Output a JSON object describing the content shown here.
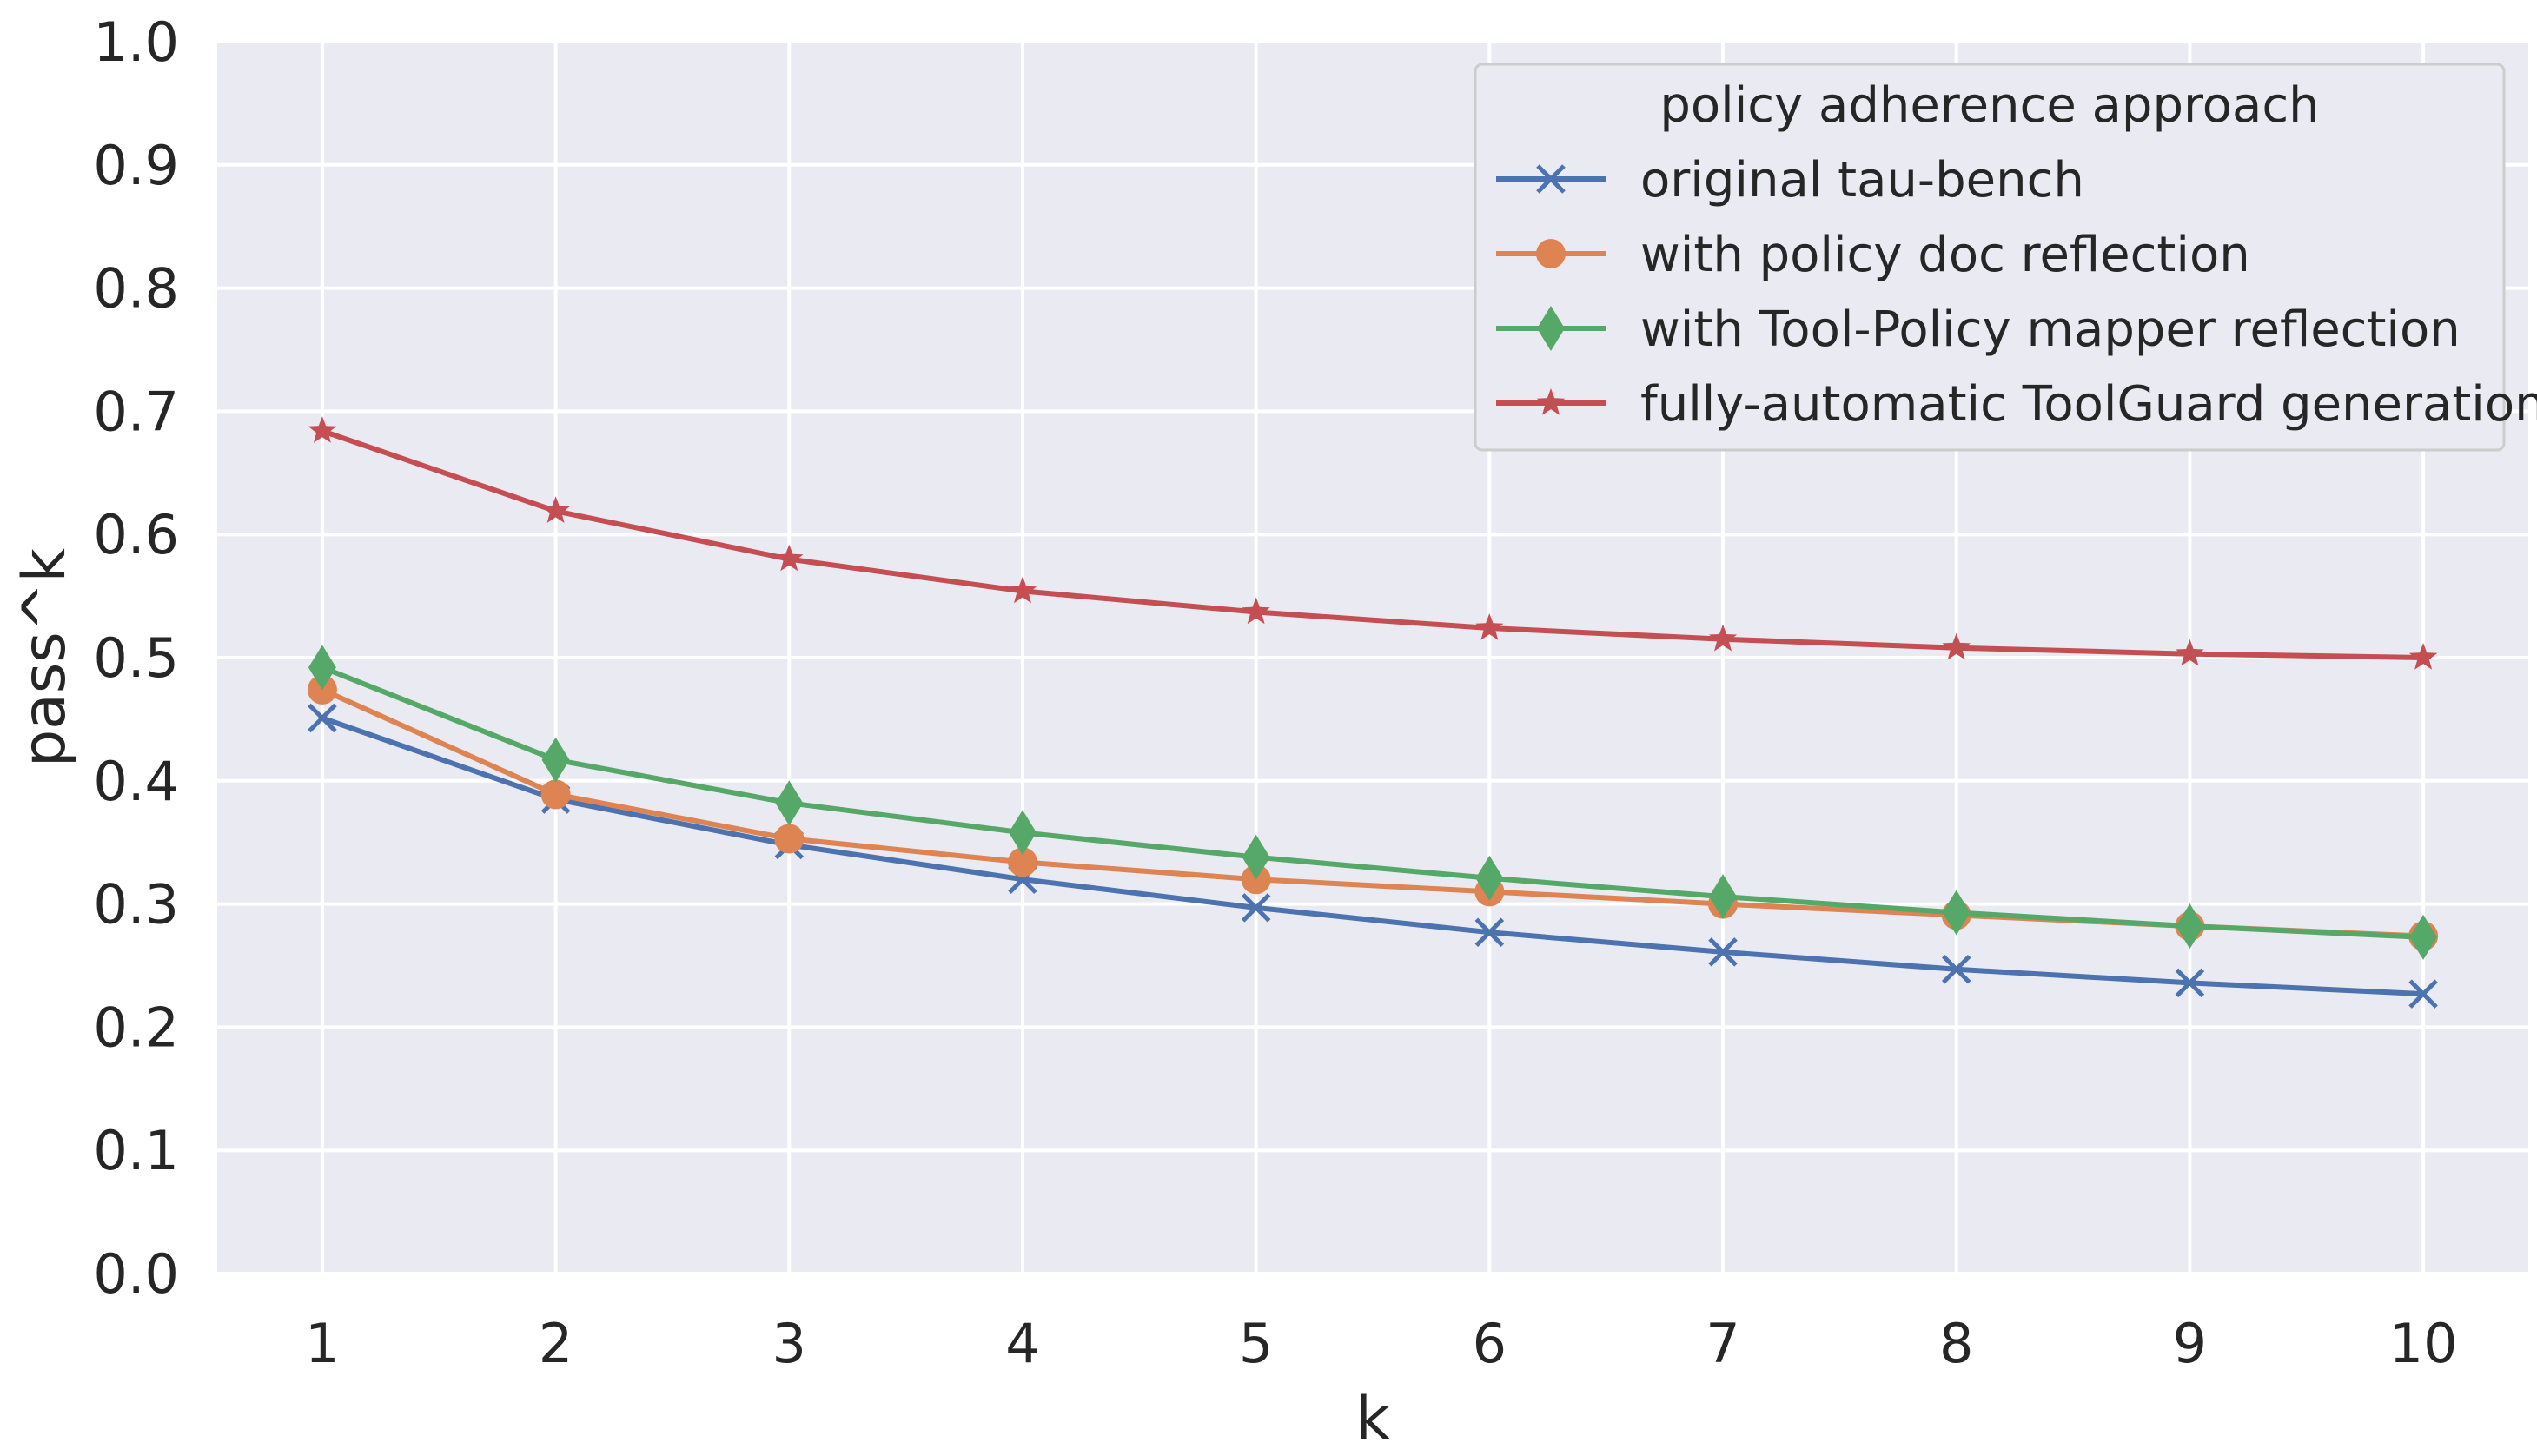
{
  "chart_data": {
    "type": "line",
    "title": "",
    "xlabel": "k",
    "ylabel": "pass^k",
    "x": [
      1,
      2,
      3,
      4,
      5,
      6,
      7,
      8,
      9,
      10
    ],
    "xlim": [
      0.55,
      10.45
    ],
    "ylim": [
      0.0,
      1.0
    ],
    "xticks": [
      "1",
      "2",
      "3",
      "4",
      "5",
      "6",
      "7",
      "8",
      "9",
      "10"
    ],
    "yticks": [
      "0.0",
      "0.1",
      "0.2",
      "0.3",
      "0.4",
      "0.5",
      "0.6",
      "0.7",
      "0.8",
      "0.9",
      "1.0"
    ],
    "grid": true,
    "legend": {
      "title": "policy adherence approach",
      "position": "top-right"
    },
    "series": [
      {
        "name": "original tau-bench",
        "color": "#4c72b0",
        "marker": "x",
        "values": [
          0.451,
          0.385,
          0.348,
          0.32,
          0.297,
          0.277,
          0.261,
          0.247,
          0.236,
          0.227
        ]
      },
      {
        "name": "with policy doc reflection",
        "color": "#dd8452",
        "marker": "circle",
        "values": [
          0.474,
          0.389,
          0.353,
          0.334,
          0.32,
          0.31,
          0.3,
          0.291,
          0.282,
          0.274
        ]
      },
      {
        "name": "with Tool-Policy mapper reflection",
        "color": "#55a868",
        "marker": "diamond",
        "values": [
          0.492,
          0.417,
          0.382,
          0.358,
          0.338,
          0.321,
          0.306,
          0.293,
          0.282,
          0.273
        ]
      },
      {
        "name": "fully-automatic ToolGuard generation",
        "color": "#c44e52",
        "marker": "star",
        "values": [
          0.684,
          0.619,
          0.58,
          0.554,
          0.537,
          0.524,
          0.515,
          0.508,
          0.503,
          0.5
        ]
      }
    ]
  }
}
